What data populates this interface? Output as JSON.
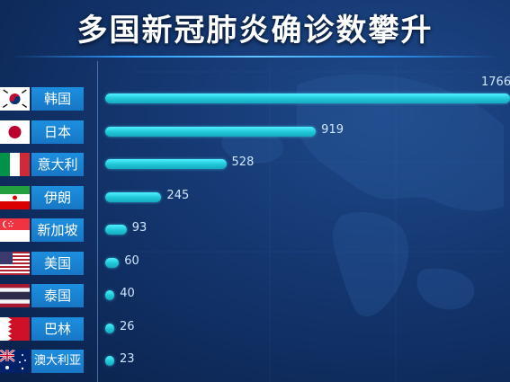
{
  "title": "多国新冠肺炎确诊数攀升",
  "colors": {
    "bar": "#27d3e3",
    "label_bg": "#1a84d6",
    "background": "#163a75",
    "title": "#ffffff",
    "value_text": "#cfe6ff"
  },
  "chart_data": {
    "type": "bar",
    "orientation": "horizontal",
    "title": "多国新冠肺炎确诊数攀升",
    "categories": [
      "韩国",
      "日本",
      "意大利",
      "伊朗",
      "新加坡",
      "美国",
      "泰国",
      "巴林",
      "澳大利亚"
    ],
    "values": [
      1766,
      919,
      528,
      245,
      93,
      60,
      40,
      26,
      23
    ],
    "flags": [
      "kr-flag-icon",
      "jp-flag-icon",
      "it-flag-icon",
      "ir-flag-icon",
      "sg-flag-icon",
      "us-flag-icon",
      "th-flag-icon",
      "bh-flag-icon",
      "au-flag-icon"
    ],
    "xlim": [
      0,
      1766
    ],
    "grid": false,
    "legend": "none"
  }
}
